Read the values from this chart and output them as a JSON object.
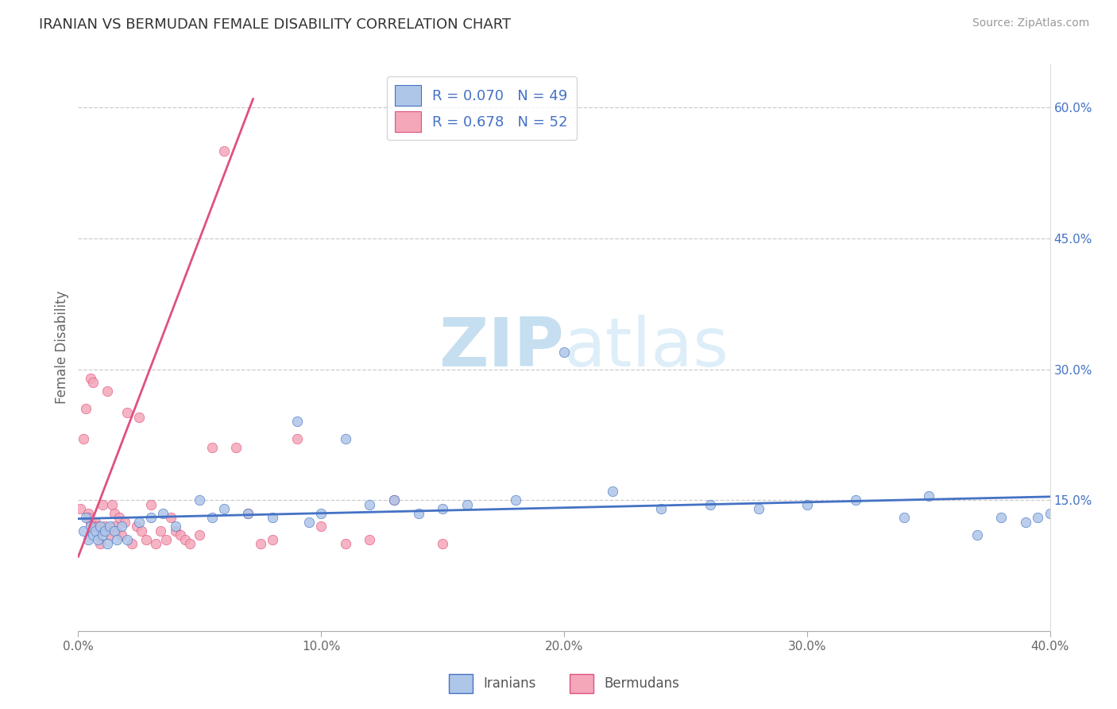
{
  "title": "IRANIAN VS BERMUDAN FEMALE DISABILITY CORRELATION CHART",
  "source": "Source: ZipAtlas.com",
  "xlabel_iranians": "Iranians",
  "xlabel_bermudans": "Bermudans",
  "ylabel": "Female Disability",
  "r_iranians": 0.07,
  "n_iranians": 49,
  "r_bermudans": 0.678,
  "n_bermudans": 52,
  "xlim": [
    0.0,
    0.4
  ],
  "ylim": [
    0.0,
    0.65
  ],
  "x_ticks": [
    0.0,
    0.1,
    0.2,
    0.3,
    0.4
  ],
  "x_tick_labels": [
    "0.0%",
    "10.0%",
    "20.0%",
    "30.0%",
    "40.0%"
  ],
  "y_ticks_right": [
    0.15,
    0.3,
    0.45,
    0.6
  ],
  "y_tick_labels_right": [
    "15.0%",
    "30.0%",
    "45.0%",
    "60.0%"
  ],
  "color_iranians": "#aec6e8",
  "color_bermudans": "#f4a7b9",
  "line_color_iranians": "#4472c4",
  "line_color_bermudans": "#e05080",
  "background_color": "#ffffff",
  "plot_bg_color": "#ffffff",
  "watermark_color": "#dceef8",
  "iranians_x": [
    0.002,
    0.003,
    0.004,
    0.005,
    0.006,
    0.007,
    0.008,
    0.009,
    0.01,
    0.011,
    0.012,
    0.013,
    0.015,
    0.016,
    0.018,
    0.02,
    0.025,
    0.03,
    0.035,
    0.04,
    0.05,
    0.055,
    0.06,
    0.07,
    0.08,
    0.09,
    0.095,
    0.1,
    0.11,
    0.12,
    0.13,
    0.14,
    0.15,
    0.16,
    0.18,
    0.2,
    0.22,
    0.24,
    0.26,
    0.28,
    0.3,
    0.32,
    0.34,
    0.35,
    0.37,
    0.38,
    0.39,
    0.395,
    0.4
  ],
  "iranians_y": [
    0.115,
    0.13,
    0.105,
    0.12,
    0.11,
    0.115,
    0.105,
    0.12,
    0.11,
    0.115,
    0.1,
    0.12,
    0.115,
    0.105,
    0.12,
    0.105,
    0.125,
    0.13,
    0.135,
    0.12,
    0.15,
    0.13,
    0.14,
    0.135,
    0.13,
    0.24,
    0.125,
    0.135,
    0.22,
    0.145,
    0.15,
    0.135,
    0.14,
    0.145,
    0.15,
    0.32,
    0.16,
    0.14,
    0.145,
    0.14,
    0.145,
    0.15,
    0.13,
    0.155,
    0.11,
    0.13,
    0.125,
    0.13,
    0.135
  ],
  "bermudans_x": [
    0.001,
    0.002,
    0.003,
    0.004,
    0.004,
    0.005,
    0.005,
    0.006,
    0.007,
    0.007,
    0.008,
    0.009,
    0.01,
    0.01,
    0.011,
    0.012,
    0.013,
    0.014,
    0.015,
    0.015,
    0.016,
    0.017,
    0.018,
    0.019,
    0.02,
    0.022,
    0.024,
    0.025,
    0.026,
    0.028,
    0.03,
    0.032,
    0.034,
    0.036,
    0.038,
    0.04,
    0.042,
    0.044,
    0.046,
    0.05,
    0.055,
    0.06,
    0.065,
    0.07,
    0.075,
    0.08,
    0.09,
    0.1,
    0.11,
    0.12,
    0.13,
    0.15
  ],
  "bermudans_y": [
    0.14,
    0.22,
    0.255,
    0.135,
    0.13,
    0.29,
    0.125,
    0.285,
    0.125,
    0.12,
    0.12,
    0.1,
    0.115,
    0.145,
    0.12,
    0.275,
    0.11,
    0.145,
    0.12,
    0.135,
    0.115,
    0.13,
    0.11,
    0.125,
    0.25,
    0.1,
    0.12,
    0.245,
    0.115,
    0.105,
    0.145,
    0.1,
    0.115,
    0.105,
    0.13,
    0.115,
    0.11,
    0.105,
    0.1,
    0.11,
    0.21,
    0.55,
    0.21,
    0.135,
    0.1,
    0.105,
    0.22,
    0.12,
    0.1,
    0.105,
    0.15,
    0.1
  ],
  "bermudan_line_x": [
    0.0,
    0.072
  ],
  "bermudan_line_y": [
    0.085,
    0.61
  ]
}
